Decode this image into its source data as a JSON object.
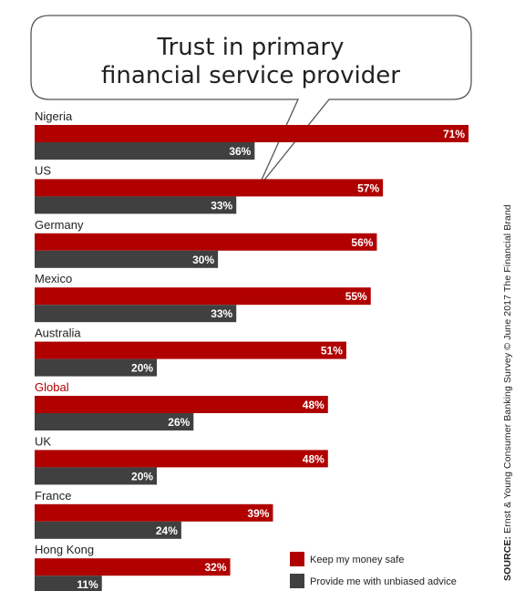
{
  "chart_data": {
    "type": "bar",
    "orientation": "horizontal",
    "title": "Trust in primary financial service provider",
    "title_lines": [
      "Trust in primary",
      "financial service provider"
    ],
    "categories": [
      "Nigeria",
      "US",
      "Germany",
      "Mexico",
      "Australia",
      "Global",
      "UK",
      "France",
      "Hong Kong"
    ],
    "highlight_category": "Global",
    "series": [
      {
        "name": "Keep my money safe",
        "values": [
          71,
          57,
          56,
          55,
          51,
          48,
          48,
          39,
          32
        ]
      },
      {
        "name": "Provide me with unbiased advice",
        "values": [
          36,
          33,
          30,
          33,
          20,
          26,
          20,
          24,
          11
        ]
      }
    ],
    "value_suffix": "%",
    "xlim": [
      0,
      71
    ],
    "grid": false,
    "legend_position": "bottom-right",
    "xlabel": "",
    "ylabel": ""
  },
  "source": {
    "label": "SOURCE:",
    "text": "Ernst & Young Consumer Banking Survey © June 2017 The Financial Brand"
  },
  "colors": {
    "series_1": "#b00000",
    "series_2": "#404040",
    "highlight_label": "#b00000",
    "label_text": "#222222",
    "value_text": "#ffffff",
    "bubble_stroke": "#555555"
  }
}
